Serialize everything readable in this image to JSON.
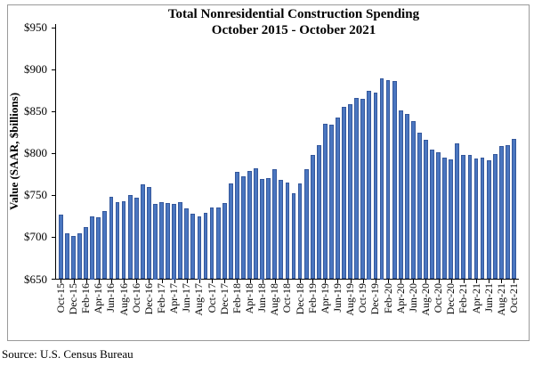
{
  "figure": {
    "title_line1": "Total Nonresidential Construction Spending",
    "title_line2": "October 2015 - October 2021",
    "y_axis_title": "Value (SAAR, $billions)",
    "source": "Source:  U.S. Census Bureau"
  },
  "chart_data": {
    "type": "bar",
    "title": "Total Nonresidential Construction Spending",
    "subtitle": "October 2015 - October 2021",
    "xlabel": "",
    "ylabel": "Value (SAAR, $billions)",
    "ylim": [
      650,
      950
    ],
    "ytick_step": 50,
    "ytick_labels": [
      "$650",
      "$700",
      "$750",
      "$800",
      "$850",
      "$900",
      "$950"
    ],
    "grid": false,
    "legend": "none",
    "bar_color": "#4a76c0",
    "bar_border_color": "#35589c",
    "x_tick_every": 2,
    "x_tick_labels": [
      "Oct-15",
      "Dec-15",
      "Feb-16",
      "Apr-16",
      "Jun-16",
      "Aug-16",
      "Oct-16",
      "Dec-16",
      "Feb-17",
      "Apr-17",
      "Jun-17",
      "Aug-17",
      "Oct-17",
      "Dec-17",
      "Feb-18",
      "Apr-18",
      "Jun-18",
      "Aug-18",
      "Oct-18",
      "Dec-18",
      "Feb-19",
      "Apr-19",
      "Jun-19",
      "Aug-19",
      "Oct-19",
      "Dec-19",
      "Feb-20",
      "Apr-20",
      "Jun-20",
      "Aug-20",
      "Oct-20",
      "Dec-20",
      "Feb-21",
      "Apr-21",
      "Jun-21",
      "Aug-21",
      "Oct-21"
    ],
    "categories": [
      "Oct-15",
      "Nov-15",
      "Dec-15",
      "Jan-16",
      "Feb-16",
      "Mar-16",
      "Apr-16",
      "May-16",
      "Jun-16",
      "Jul-16",
      "Aug-16",
      "Sep-16",
      "Oct-16",
      "Nov-16",
      "Dec-16",
      "Jan-17",
      "Feb-17",
      "Mar-17",
      "Apr-17",
      "May-17",
      "Jun-17",
      "Jul-17",
      "Aug-17",
      "Sep-17",
      "Oct-17",
      "Nov-17",
      "Dec-17",
      "Jan-18",
      "Feb-18",
      "Mar-18",
      "Apr-18",
      "May-18",
      "Jun-18",
      "Jul-18",
      "Aug-18",
      "Sep-18",
      "Oct-18",
      "Nov-18",
      "Dec-18",
      "Jan-19",
      "Feb-19",
      "Mar-19",
      "Apr-19",
      "May-19",
      "Jun-19",
      "Jul-19",
      "Aug-19",
      "Sep-19",
      "Oct-19",
      "Nov-19",
      "Dec-19",
      "Jan-20",
      "Feb-20",
      "Mar-20",
      "Apr-20",
      "May-20",
      "Jun-20",
      "Jul-20",
      "Aug-20",
      "Sep-20",
      "Oct-20",
      "Nov-20",
      "Dec-20",
      "Jan-21",
      "Feb-21",
      "Mar-21",
      "Apr-21",
      "May-21",
      "Jun-21",
      "Jul-21",
      "Aug-21",
      "Sep-21",
      "Oct-21"
    ],
    "values": [
      727,
      705,
      702,
      705,
      712,
      725,
      724,
      731,
      748,
      742,
      743,
      750,
      747,
      763,
      760,
      740,
      742,
      741,
      740,
      742,
      734,
      728,
      725,
      729,
      736,
      735,
      741,
      764,
      778,
      773,
      779,
      782,
      770,
      771,
      781,
      768,
      765,
      752,
      764,
      781,
      798,
      810,
      835,
      834,
      843,
      855,
      859,
      866,
      865,
      875,
      873,
      890,
      887,
      886,
      851,
      847,
      838,
      825,
      816,
      805,
      801,
      795,
      793,
      812,
      798,
      798,
      794,
      795,
      792,
      799,
      809,
      810,
      817
    ]
  }
}
